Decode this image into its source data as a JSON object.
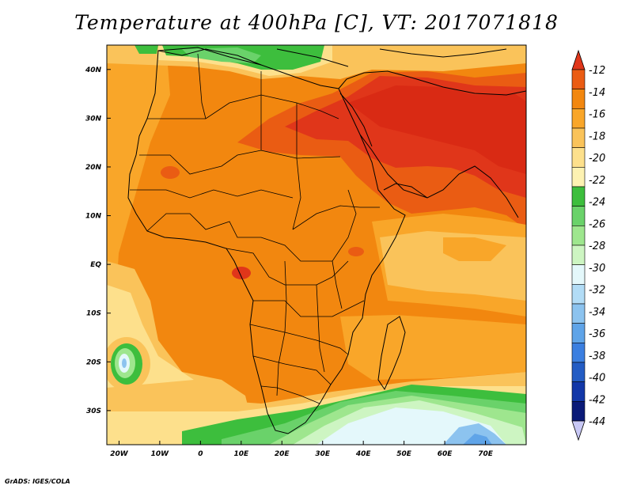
{
  "title": "Temperature at 400hPa [C], VT: 2017071818",
  "credit": "GrADS: IGES/COLA",
  "map": {
    "variable": "Temperature at 400hPa",
    "units": "C",
    "valid_time": "2017071818",
    "lon_range": [
      -23,
      80
    ],
    "lat_range": [
      -37,
      45
    ],
    "lat_labels": [
      "40N",
      "30N",
      "20N",
      "10N",
      "EQ",
      "10S",
      "20S",
      "30S"
    ],
    "lat_values": [
      40,
      30,
      20,
      10,
      0,
      -10,
      -20,
      -30
    ],
    "lon_labels": [
      "20W",
      "10W",
      "0",
      "10E",
      "20E",
      "30E",
      "40E",
      "50E",
      "60E",
      "70E"
    ],
    "lon_values": [
      -20,
      -10,
      0,
      10,
      20,
      30,
      40,
      50,
      60,
      70
    ]
  },
  "colorbar": {
    "labels": [
      "-12",
      "-14",
      "-16",
      "-18",
      "-20",
      "-22",
      "-24",
      "-26",
      "-28",
      "-30",
      "-32",
      "-34",
      "-36",
      "-38",
      "-40",
      "-42",
      "-44"
    ],
    "colors": [
      "#e0361a",
      "#ea5c13",
      "#f2870f",
      "#f9a629",
      "#fac35a",
      "#fde08c",
      "#fdf2b2",
      "#3dbe3d",
      "#6ad26a",
      "#9ee68e",
      "#cdf5c2",
      "#e4f8fb",
      "#b2dcf6",
      "#8cc3ef",
      "#5fa4e8",
      "#3b7fe0",
      "#235cc4",
      "#1237a8",
      "#0a1a78",
      "#c8c8f5"
    ]
  }
}
